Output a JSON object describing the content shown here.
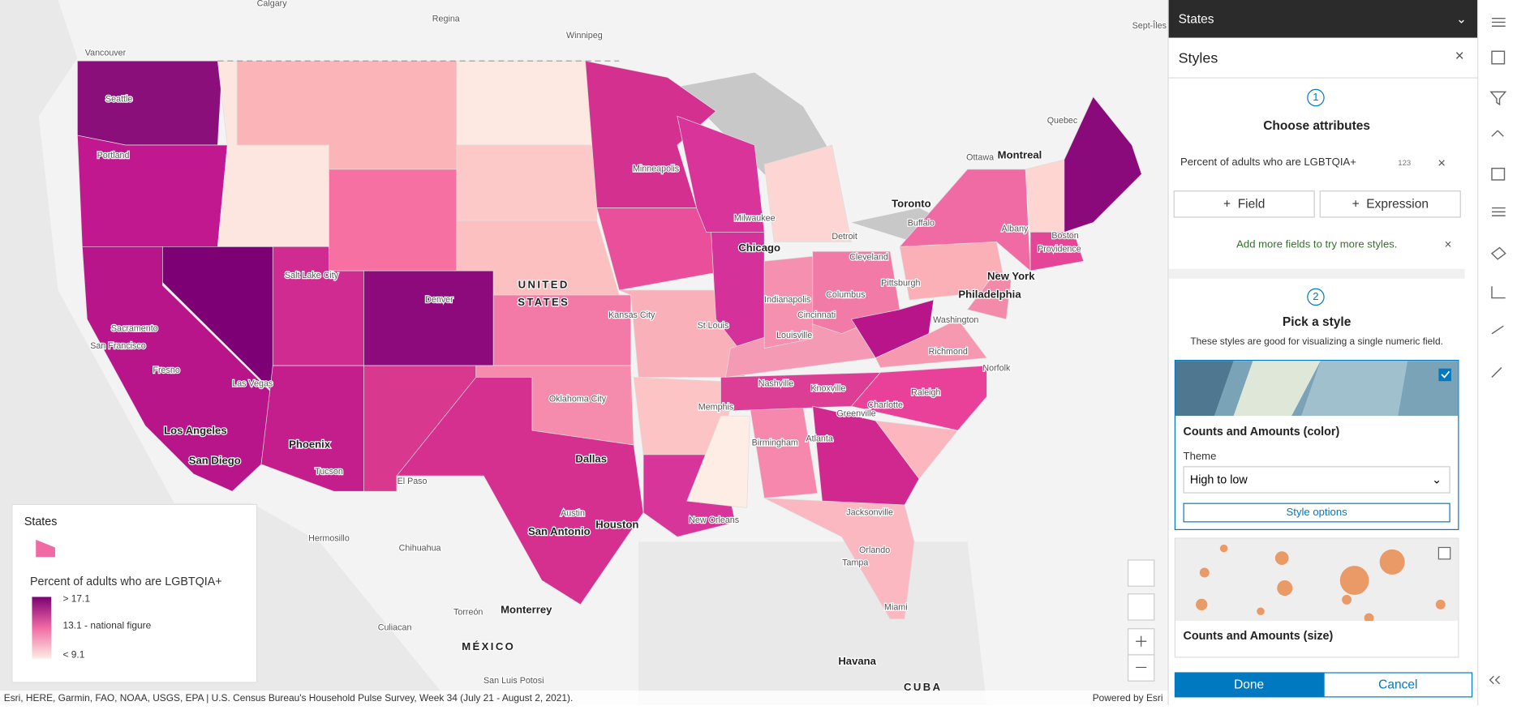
{
  "map": {
    "labels": [
      "Calgary",
      "Regina",
      "Winnipeg",
      "Vancouver",
      "Seattle",
      "Portland",
      "Sacramento",
      "San Francisco",
      "Fresno",
      "Las Vegas",
      "Los Angeles",
      "San Diego",
      "Phoenix",
      "Tucson",
      "Salt Lake City",
      "Denver",
      "El Paso",
      "Hermosillo",
      "Chihuahua",
      "Torreón",
      "Monterrey",
      "Culiacan",
      "MÉXICO",
      "San Luis Potosi",
      "UNITED",
      "STATES",
      "Minneapolis",
      "Milwaukee",
      "Chicago",
      "Kansas City",
      "Oklahoma City",
      "Dallas",
      "Austin",
      "San Antonio",
      "Houston",
      "New Orleans",
      "St Louis",
      "Memphis",
      "Nashville",
      "Knoxville",
      "Atlanta",
      "Birmingham",
      "Indianapolis",
      "Cincinnati",
      "Louisville",
      "Columbus",
      "Cleveland",
      "Detroit",
      "Toronto",
      "Buffalo",
      "Pittsburgh",
      "Philadelphia",
      "Washington",
      "Richmond",
      "Norfolk",
      "Raleigh",
      "Charlotte",
      "Greenville",
      "Jacksonville",
      "Orlando",
      "Tampa",
      "Miami",
      "Havana",
      "CUBA",
      "New York",
      "Boston",
      "Providence",
      "Albany",
      "Montreal",
      "Ottawa",
      "Quebec",
      "Sept-Îles"
    ],
    "attribution": "Esri, HERE, Garmin, FAO, NOAA, USGS, EPA | U.S. Census Bureau's Household Pulse Survey, Week 34 (July 21 - August 2, 2021).",
    "powered_by": "Powered by Esri"
  },
  "legend": {
    "layer": "States",
    "field": "Percent of adults who are LGBTQIA+",
    "stops": [
      "> 17.1",
      "13.1 - national figure",
      "< 9.1"
    ]
  },
  "panel": {
    "layer": "States",
    "title": "Styles",
    "step1": {
      "number": "1",
      "title": "Choose attributes",
      "field": "Percent of adults who are LGBTQIA+",
      "field_type": "123",
      "add_field": "Field",
      "add_expression": "Expression",
      "hint": "Add more fields to try more styles."
    },
    "step2": {
      "number": "2",
      "title": "Pick a style",
      "description": "These styles are good for visualizing a single numeric field.",
      "style1": "Counts and Amounts (color)",
      "theme_label": "Theme",
      "theme": "High to low",
      "style_options": "Style options",
      "style2": "Counts and Amounts (size)"
    },
    "done": "Done",
    "cancel": "Cancel"
  }
}
